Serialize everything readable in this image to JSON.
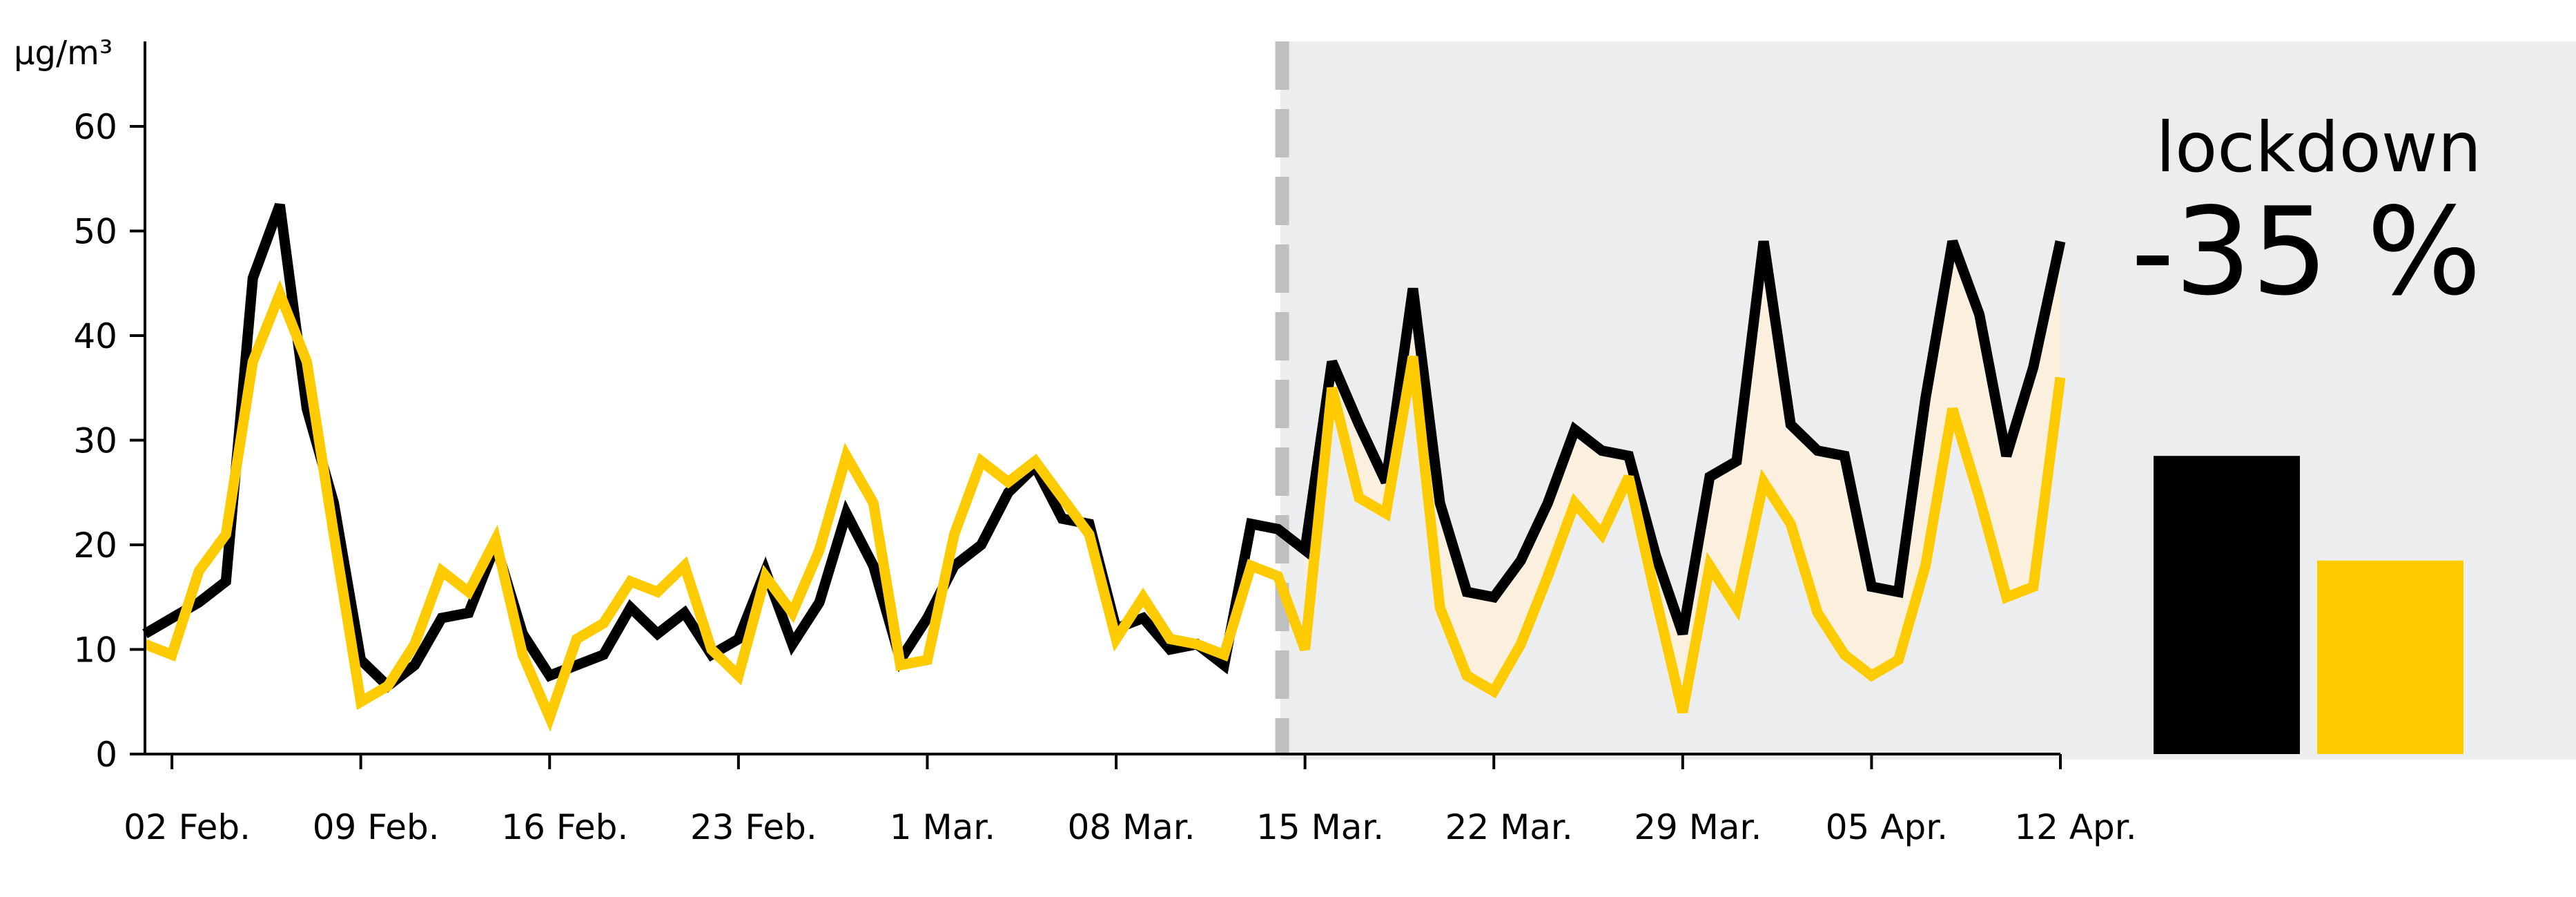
{
  "chart_data": {
    "type": "line",
    "ylabel": "μg/m³",
    "ylim": [
      0,
      65
    ],
    "y_ticks": [
      "0",
      "10",
      "20",
      "30",
      "40",
      "50",
      "60"
    ],
    "x_ticks": [
      "02 Feb.",
      "09 Feb.",
      "16 Feb.",
      "23 Feb.",
      "1 Mar.",
      "08 Mar.",
      "15 Mar.",
      "22 Mar.",
      "29 Mar.",
      "05 Apr.",
      "12 Apr."
    ],
    "x_dates": [
      "2020-02-01",
      "2020-02-02",
      "2020-02-03",
      "2020-02-04",
      "2020-02-05",
      "2020-02-06",
      "2020-02-07",
      "2020-02-08",
      "2020-02-09",
      "2020-02-10",
      "2020-02-11",
      "2020-02-12",
      "2020-02-13",
      "2020-02-14",
      "2020-02-15",
      "2020-02-16",
      "2020-02-17",
      "2020-02-18",
      "2020-02-19",
      "2020-02-20",
      "2020-02-21",
      "2020-02-22",
      "2020-02-23",
      "2020-02-24",
      "2020-02-25",
      "2020-02-26",
      "2020-02-27",
      "2020-02-28",
      "2020-02-29",
      "2020-03-01",
      "2020-03-02",
      "2020-03-03",
      "2020-03-04",
      "2020-03-05",
      "2020-03-06",
      "2020-03-07",
      "2020-03-08",
      "2020-03-09",
      "2020-03-10",
      "2020-03-11",
      "2020-03-12",
      "2020-03-13",
      "2020-03-14",
      "2020-03-15",
      "2020-03-16",
      "2020-03-17",
      "2020-03-18",
      "2020-03-19",
      "2020-03-20",
      "2020-03-21",
      "2020-03-22",
      "2020-03-23",
      "2020-03-24",
      "2020-03-25",
      "2020-03-26",
      "2020-03-27",
      "2020-03-28",
      "2020-03-29",
      "2020-03-30",
      "2020-03-31",
      "2020-04-01",
      "2020-04-02",
      "2020-04-03",
      "2020-04-04",
      "2020-04-05",
      "2020-04-06",
      "2020-04-07",
      "2020-04-08",
      "2020-04-09",
      "2020-04-10",
      "2020-04-11",
      "2020-04-12"
    ],
    "series": [
      {
        "color": "#000000",
        "values": [
          11.5,
          13,
          14.5,
          16.5,
          45.5,
          52.5,
          33,
          24,
          9,
          6.5,
          8.5,
          13,
          13.5,
          20,
          11.5,
          7.5,
          8.5,
          9.5,
          14,
          11.5,
          13.5,
          9.5,
          11,
          17.5,
          10.5,
          14.5,
          23,
          18,
          9,
          13,
          18,
          20,
          25,
          27.5,
          22.5,
          22,
          12,
          13,
          10,
          10.5,
          8.5,
          22,
          21.5,
          19.5,
          37.5,
          31.5,
          26,
          44.5,
          24,
          15.5,
          15,
          18.5,
          24,
          31,
          29,
          28.5,
          19,
          11.5,
          26.5,
          28,
          49,
          31.5,
          29,
          28.5,
          16,
          15.5,
          34,
          49,
          42,
          28.5,
          37,
          49
        ]
      },
      {
        "color": "#FECB00",
        "values": [
          10.5,
          9.5,
          17.5,
          21,
          37.5,
          44,
          37.5,
          21,
          5,
          6.5,
          10.5,
          17.5,
          15.5,
          20.5,
          9.5,
          3.5,
          11,
          12.5,
          16.5,
          15.5,
          18,
          10,
          7.5,
          17,
          13.5,
          19.5,
          28.5,
          24,
          8.5,
          9,
          21,
          28,
          26,
          28,
          24.5,
          21,
          11,
          15,
          11,
          10.5,
          9.5,
          18,
          17,
          10,
          35,
          24.5,
          23,
          38,
          14,
          7.5,
          6,
          10.5,
          17,
          24,
          21,
          26.5,
          15,
          4,
          18,
          14,
          26,
          22,
          13.5,
          9.5,
          7.5,
          9,
          18,
          33,
          24.5,
          15,
          16,
          36
        ]
      }
    ],
    "lockdown_start": "2020-03-14",
    "bars": [
      {
        "color": "#000000",
        "value": 28.5
      },
      {
        "color": "#FECB00",
        "value": 18.5
      }
    ],
    "annotation": {
      "line1": "lockdown",
      "line2": "-35 %"
    },
    "colors": {
      "shade": "#ECEDEF",
      "fill_between": "#FBF0DE",
      "divider": "#BFBFBF"
    }
  }
}
